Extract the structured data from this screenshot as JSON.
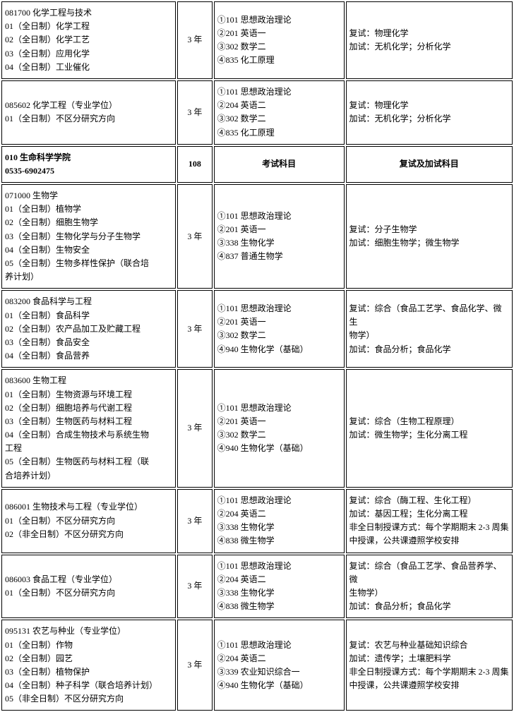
{
  "rows": [
    {
      "c1": [
        "081700 化学工程与技术",
        "01（全日制）化学工程",
        "02（全日制）化学工艺",
        "03（全日制）应用化学",
        "04（全日制）工业催化"
      ],
      "c2": "3 年",
      "c3": [
        "①101 思想政治理论",
        "②201 英语一",
        "③302 数学二",
        "④835 化工原理"
      ],
      "c4": [
        "复试：物理化学",
        "加试：无机化学；分析化学"
      ]
    },
    {
      "c1": [
        "085602 化学工程（专业学位）",
        "01（全日制）不区分研究方向"
      ],
      "c2": "3 年",
      "c3": [
        "①101 思想政治理论",
        "②204 英语二",
        "③302 数学二",
        "④835 化工原理"
      ],
      "c4": [
        "复试：物理化学",
        "加试：无机化学；分析化学"
      ]
    },
    {
      "header": true,
      "c1": [
        "010 生命科学学院",
        "0535-6902475"
      ],
      "c2": "108",
      "c3": [
        "考试科目"
      ],
      "c4": [
        "复试及加试科目"
      ]
    },
    {
      "c1": [
        "071000 生物学",
        "01（全日制）植物学",
        "02（全日制）细胞生物学",
        "03（全日制）生物化学与分子生物学",
        "04（全日制）生物安全",
        "05（全日制）生物多样性保护（联合培",
        "养计划）"
      ],
      "c2": "3 年",
      "c3": [
        "①101 思想政治理论",
        "②201 英语一",
        "③338 生物化学",
        "④837 普通生物学"
      ],
      "c4": [
        "复试：分子生物学",
        "加试：细胞生物学；微生物学"
      ]
    },
    {
      "c1": [
        "083200 食品科学与工程",
        "01（全日制）食品科学",
        "02（全日制）农产品加工及贮藏工程",
        "03（全日制）食品安全",
        "04（全日制）食品营养"
      ],
      "c2": "3 年",
      "c3": [
        "①101 思想政治理论",
        "②201 英语一",
        "③302 数学二",
        "④940 生物化学（基础）"
      ],
      "c4": [
        "复试：综合（食品工艺学、食品化学、微生",
        "物学）",
        "加试：食品分析；食品化学"
      ]
    },
    {
      "c1": [
        "083600 生物工程",
        "01（全日制）生物资源与环境工程",
        "02（全日制）细胞培养与代谢工程",
        "03（全日制）生物医药与材料工程",
        "04（全日制）合成生物技术与系统生物",
        "工程",
        "05（全日制）生物医药与材料工程（联",
        "合培养计划）"
      ],
      "c2": "3 年",
      "c3": [
        "①101 思想政治理论",
        "②201 英语一",
        "③302 数学二",
        "④940 生物化学（基础）"
      ],
      "c4": [
        "复试：综合（生物工程原理）",
        "加试：微生物学；生化分离工程"
      ]
    },
    {
      "c1": [
        "086001 生物技术与工程（专业学位）",
        "01（全日制）不区分研究方向",
        "02（非全日制）不区分研究方向"
      ],
      "c2": "3 年",
      "c3": [
        "①101 思想政治理论",
        "②204 英语二",
        "③338 生物化学",
        "④838 微生物学"
      ],
      "c4": [
        "复试：综合（酶工程、生化工程）",
        "加试：基因工程；生化分离工程",
        "非全日制授课方式：每个学期期末 2-3 周集",
        "中授课，公共课遵照学校安排"
      ]
    },
    {
      "c1": [
        "086003 食品工程（专业学位）",
        "01（全日制）不区分研究方向"
      ],
      "c2": "3 年",
      "c3": [
        "①101 思想政治理论",
        "②204 英语二",
        "③338 生物化学",
        "④838 微生物学"
      ],
      "c4": [
        "复试：综合（食品工艺学、食品营养学、微",
        "生物学）",
        "加试：食品分析；食品化学"
      ]
    },
    {
      "c1": [
        "095131 农艺与种业（专业学位）",
        "01（全日制）作物",
        "02（全日制）园艺",
        "03（全日制）植物保护",
        "04（全日制）种子科学（联合培养计划）",
        "05（非全日制）不区分研究方向"
      ],
      "c2": "3 年",
      "c3": [
        "①101 思想政治理论",
        "②204 英语二",
        "③339 农业知识综合一",
        "④940 生物化学（基础）"
      ],
      "c4": [
        "复试：农艺与种业基础知识综合",
        "加试：遗传学；土壤肥料学",
        "非全日制授课方式：每个学期期末 2-3 周集",
        "中授课，公共课遵照学校安排"
      ]
    }
  ]
}
